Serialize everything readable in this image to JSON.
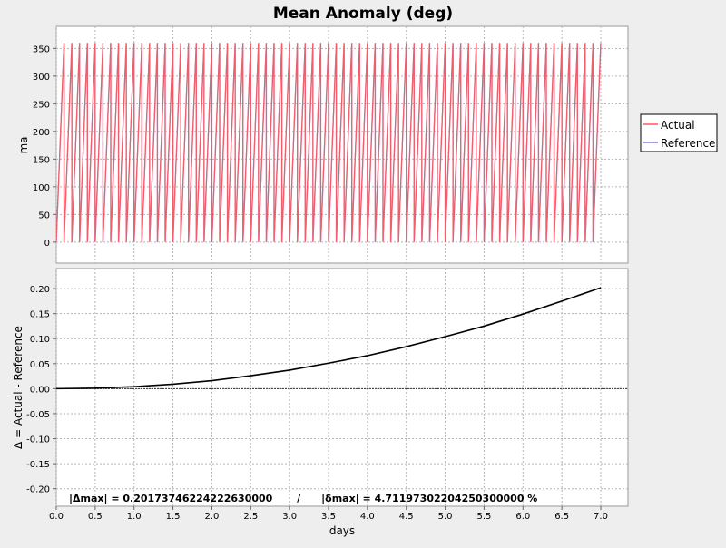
{
  "chart_data": {
    "title": "Mean Anomaly (deg)",
    "xlabel": "days",
    "xlim": [
      0.0,
      7.35
    ],
    "xticks": [
      "0.0",
      "0.5",
      "1.0",
      "1.5",
      "2.0",
      "2.5",
      "3.0",
      "3.5",
      "4.0",
      "4.5",
      "5.0",
      "5.5",
      "6.0",
      "6.5",
      "7.0"
    ],
    "panels": [
      {
        "type": "line",
        "ylabel": "ma",
        "ylim": [
          -38,
          390
        ],
        "yticks": [
          "0",
          "50",
          "100",
          "150",
          "200",
          "250",
          "300",
          "350"
        ],
        "grid": true,
        "legend": {
          "placement": "right",
          "entries": [
            {
              "name": "Actual",
              "color": "#ff5555"
            },
            {
              "name": "Reference",
              "color": "#8080e0"
            }
          ]
        },
        "series": [
          {
            "name": "Actual",
            "color": "#ff5555",
            "period_days": 0.1,
            "x_range": [
              0.0,
              7.0
            ],
            "wrap_range": [
              0,
              360
            ]
          },
          {
            "name": "Reference",
            "color": "#8080e0",
            "period_days": 0.1,
            "x_range": [
              0.0,
              7.0
            ],
            "wrap_range": [
              0,
              360
            ]
          }
        ]
      },
      {
        "type": "line",
        "ylabel": "Δ = Actual - Reference",
        "ylim": [
          -0.235,
          0.24
        ],
        "yticks": [
          "0.20",
          "0.15",
          "0.10",
          "0.05",
          "0.00",
          "-0.05",
          "-0.10",
          "-0.15",
          "-0.20"
        ],
        "grid": true,
        "zero_line": true,
        "series": [
          {
            "color": "#000000",
            "x": [
              0.0,
              0.5,
              1.0,
              1.5,
              2.0,
              2.5,
              3.0,
              3.5,
              4.0,
              4.5,
              5.0,
              5.5,
              6.0,
              6.5,
              7.0
            ],
            "y": [
              0.0,
              0.001,
              0.004,
              0.009,
              0.016,
              0.026,
              0.037,
              0.051,
              0.066,
              0.084,
              0.104,
              0.125,
              0.149,
              0.175,
              0.2017
            ]
          }
        ],
        "annotation": "|Δmax| = 0.20173746224222630000       /      |δmax| = 4.71197302204250300000 %"
      }
    ]
  }
}
